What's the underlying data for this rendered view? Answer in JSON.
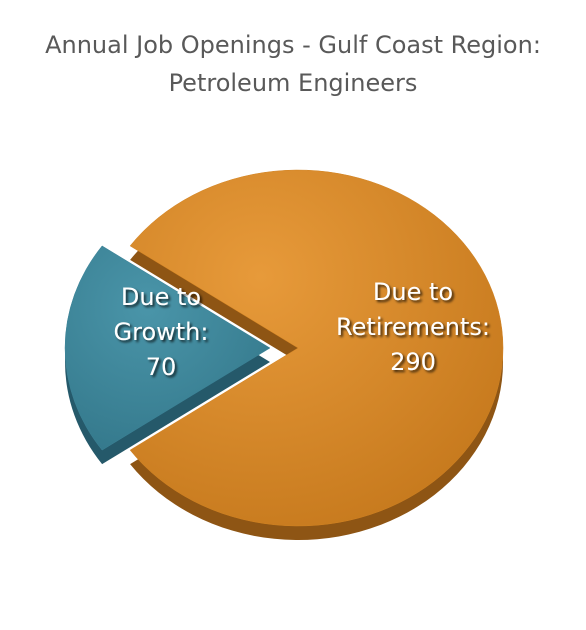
{
  "chart_data": {
    "type": "pie",
    "title_lines": [
      "Annual Job Openings - Gulf Coast Region:",
      "Petroleum Engineers"
    ],
    "slices": [
      {
        "label_lines": [
          "Due to",
          "Retirements:",
          "290"
        ],
        "value": 290,
        "color": "#D28322",
        "exploded": false
      },
      {
        "label_lines": [
          "Due to",
          "Growth:",
          "70"
        ],
        "value": 70,
        "color": "#3C8397",
        "exploded": true
      }
    ]
  }
}
